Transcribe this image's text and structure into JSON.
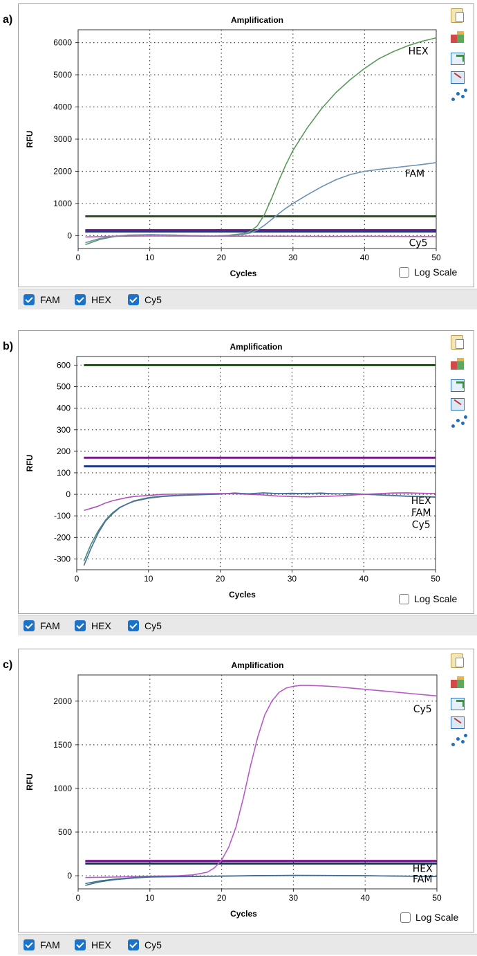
{
  "panels": [
    {
      "letter": "a)",
      "title": "Amplification",
      "ylabel": "RFU",
      "xlabel": "Cycles",
      "log_scale_label": "Log Scale",
      "legend": [
        "FAM",
        "HEX",
        "Cy5"
      ]
    },
    {
      "letter": "b)",
      "title": "Amplification",
      "ylabel": "RFU",
      "xlabel": "Cycles",
      "log_scale_label": "Log Scale",
      "legend": [
        "FAM",
        "HEX",
        "Cy5"
      ]
    },
    {
      "letter": "c)",
      "title": "Amplification",
      "ylabel": "RFU",
      "xlabel": "Cycles",
      "log_scale_label": "Log Scale",
      "legend": [
        "FAM",
        "HEX",
        "Cy5"
      ]
    }
  ],
  "toolbar_icons": [
    "clipboard-icon",
    "modules-icon",
    "export-icon",
    "image-icon",
    "graph-icon"
  ],
  "chart_data": [
    {
      "type": "line",
      "title": "Amplification",
      "xlabel": "Cycles",
      "ylabel": "RFU",
      "xlim": [
        0,
        50
      ],
      "ylim": [
        -400,
        6400
      ],
      "xticks": [
        0,
        10,
        20,
        30,
        40,
        50
      ],
      "yticks": [
        0,
        1000,
        2000,
        3000,
        4000,
        5000,
        6000
      ],
      "grid": true,
      "series": [
        {
          "name": "HEX",
          "color": "#5a9a5a",
          "x": [
            1,
            3,
            5,
            7,
            10,
            13,
            16,
            19,
            21,
            23,
            24,
            25,
            26,
            27,
            28,
            29,
            30,
            32,
            34,
            36,
            38,
            40,
            42,
            44,
            46,
            48,
            50
          ],
          "y": [
            -280,
            -120,
            -30,
            10,
            30,
            20,
            0,
            -10,
            10,
            60,
            130,
            300,
            650,
            1150,
            1700,
            2200,
            2650,
            3350,
            3950,
            4450,
            4850,
            5200,
            5500,
            5720,
            5900,
            6040,
            6150
          ]
        },
        {
          "name": "FAM",
          "color": "#6b8fb5",
          "x": [
            1,
            3,
            5,
            7,
            10,
            13,
            16,
            19,
            21,
            23,
            24,
            25,
            26,
            27,
            28,
            29,
            30,
            32,
            34,
            36,
            38,
            40,
            42,
            44,
            46,
            48,
            50
          ],
          "y": [
            -220,
            -90,
            -20,
            20,
            30,
            20,
            0,
            -10,
            0,
            40,
            80,
            170,
            320,
            500,
            680,
            850,
            1000,
            1270,
            1520,
            1740,
            1900,
            2000,
            2060,
            2110,
            2160,
            2210,
            2270
          ]
        },
        {
          "name": "Cy5",
          "color": "#c060c0",
          "x": [
            1,
            5,
            10,
            15,
            20,
            25,
            30,
            35,
            40,
            45,
            50
          ],
          "y": [
            -40,
            -20,
            -10,
            -15,
            -20,
            -15,
            -20,
            -25,
            -20,
            -25,
            -30
          ]
        }
      ],
      "thresholds": [
        {
          "color": "#2a4f22",
          "y": 600
        },
        {
          "color": "#7a1a8a",
          "y": 170
        },
        {
          "color": "#1f3a8a",
          "y": 130
        }
      ],
      "curve_labels": [
        {
          "text": "HEX",
          "x": 47.5,
          "y": 5640
        },
        {
          "text": "FAM",
          "x": 47,
          "y": 1830
        },
        {
          "text": "Cy5",
          "x": 47.5,
          "y": -320
        }
      ]
    },
    {
      "type": "line",
      "title": "Amplification",
      "xlabel": "Cycles",
      "ylabel": "RFU",
      "xlim": [
        0,
        50
      ],
      "ylim": [
        -350,
        640
      ],
      "xticks": [
        0,
        10,
        20,
        30,
        40,
        50
      ],
      "yticks": [
        -300,
        -200,
        -100,
        0,
        100,
        200,
        300,
        400,
        500,
        600
      ],
      "grid": true,
      "series": [
        {
          "name": "HEX",
          "color": "#4a8a7a",
          "x": [
            1,
            2,
            3,
            4,
            5,
            6,
            7,
            8,
            10,
            12,
            15,
            18,
            20,
            22,
            24,
            26,
            28,
            30,
            32,
            34,
            36,
            38,
            40,
            42,
            44,
            46,
            48,
            50
          ],
          "y": [
            -310,
            -230,
            -170,
            -120,
            -85,
            -60,
            -45,
            -30,
            -15,
            -8,
            -3,
            0,
            2,
            5,
            3,
            6,
            4,
            2,
            5,
            4,
            3,
            2,
            0,
            -2,
            -5,
            -8,
            -10,
            -12
          ]
        },
        {
          "name": "FAM",
          "color": "#4a6fa0",
          "x": [
            1,
            2,
            3,
            4,
            5,
            6,
            7,
            8,
            10,
            12,
            15,
            18,
            20,
            22,
            24,
            26,
            28,
            30,
            32,
            34,
            36,
            38,
            40,
            42,
            44,
            46,
            48,
            50
          ],
          "y": [
            -330,
            -250,
            -180,
            -125,
            -90,
            -62,
            -45,
            -32,
            -18,
            -10,
            -4,
            -1,
            1,
            6,
            2,
            7,
            3,
            5,
            3,
            6,
            2,
            4,
            1,
            -3,
            -6,
            -9,
            -11,
            -13
          ]
        },
        {
          "name": "Cy5",
          "color": "#b050b8",
          "x": [
            1,
            2,
            3,
            4,
            5,
            6,
            7,
            8,
            10,
            12,
            15,
            18,
            20,
            22,
            24,
            26,
            28,
            30,
            32,
            34,
            36,
            38,
            40,
            42,
            44,
            46,
            48,
            50
          ],
          "y": [
            -75,
            -65,
            -55,
            -40,
            -30,
            -22,
            -15,
            -10,
            -5,
            0,
            2,
            3,
            4,
            3,
            0,
            -3,
            -8,
            -10,
            -12,
            -10,
            -8,
            -4,
            0,
            3,
            6,
            7,
            5,
            4
          ]
        }
      ],
      "thresholds": [
        {
          "color": "#2a4f22",
          "y": 600
        },
        {
          "color": "#7a1a8a",
          "y": 170
        },
        {
          "color": "#1f3a8a",
          "y": 130
        }
      ],
      "curve_labels": [
        {
          "text": "HEX",
          "x": 48,
          "y": -45
        },
        {
          "text": "FAM",
          "x": 48,
          "y": -100
        },
        {
          "text": "Cy5",
          "x": 48,
          "y": -155
        }
      ]
    },
    {
      "type": "line",
      "title": "Amplification",
      "xlabel": "Cycles",
      "ylabel": "RFU",
      "xlim": [
        0,
        50
      ],
      "ylim": [
        -150,
        2300
      ],
      "xticks": [
        0,
        10,
        20,
        30,
        40,
        50
      ],
      "yticks": [
        0,
        500,
        1000,
        1500,
        2000
      ],
      "grid": true,
      "series": [
        {
          "name": "Cy5",
          "color": "#b85ac8",
          "x": [
            1,
            5,
            10,
            14,
            16,
            18,
            19,
            20,
            21,
            22,
            23,
            24,
            25,
            26,
            27,
            28,
            29,
            30,
            31,
            32,
            34,
            36,
            38,
            40,
            42,
            44,
            46,
            48,
            50
          ],
          "y": [
            -20,
            -15,
            -5,
            0,
            10,
            40,
            90,
            180,
            330,
            560,
            880,
            1250,
            1580,
            1840,
            2000,
            2100,
            2150,
            2170,
            2180,
            2180,
            2175,
            2165,
            2150,
            2135,
            2120,
            2105,
            2090,
            2075,
            2060
          ]
        },
        {
          "name": "HEX",
          "color": "#3a7a6a",
          "x": [
            1,
            3,
            5,
            8,
            10,
            15,
            20,
            25,
            30,
            35,
            40,
            45,
            50
          ],
          "y": [
            -110,
            -70,
            -45,
            -25,
            -15,
            -10,
            -5,
            0,
            3,
            2,
            0,
            -5,
            -10
          ]
        },
        {
          "name": "FAM",
          "color": "#3f6aa0",
          "x": [
            1,
            3,
            5,
            8,
            10,
            15,
            20,
            25,
            30,
            35,
            40,
            45,
            50
          ],
          "y": [
            -90,
            -60,
            -40,
            -20,
            -12,
            -8,
            -3,
            2,
            5,
            3,
            1,
            -3,
            -8
          ]
        }
      ],
      "thresholds": [
        {
          "color": "#7a1a8a",
          "y": 170
        },
        {
          "color": "#16304f",
          "y": 140
        }
      ],
      "curve_labels": [
        {
          "text": "Cy5",
          "x": 48,
          "y": 1870
        },
        {
          "text": "HEX",
          "x": 48,
          "y": 45
        },
        {
          "text": "FAM",
          "x": 48,
          "y": -75
        }
      ]
    }
  ]
}
